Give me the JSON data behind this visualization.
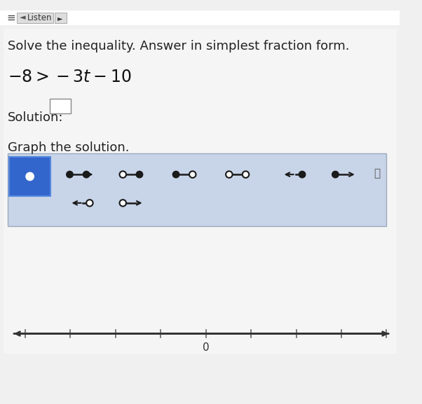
{
  "page_bg": "#f0f0f0",
  "top_bar_bg": "#ffffff",
  "listen_btn_text": "Listen",
  "listen_btn_text_color": "#333333",
  "instruction_text": "Solve the inequality. Answer in simplest fraction form.",
  "instruction_fontsize": 13,
  "inequality_text": "$-8>-3t-10$",
  "inequality_fontsize": 17,
  "solution_label": "Solution:",
  "solution_fontsize": 13,
  "graph_label": "Graph the solution.",
  "graph_fontsize": 13,
  "panel_bg": "#c8d4e8",
  "selected_box_bg": "#3366cc",
  "dark_dot_color": "#1a1a1a",
  "arrow_color": "#1a1a1a",
  "numberline_color": "#333333",
  "numberline_tick_color": "#666666",
  "zero_label": "0",
  "zero_fontsize": 11
}
